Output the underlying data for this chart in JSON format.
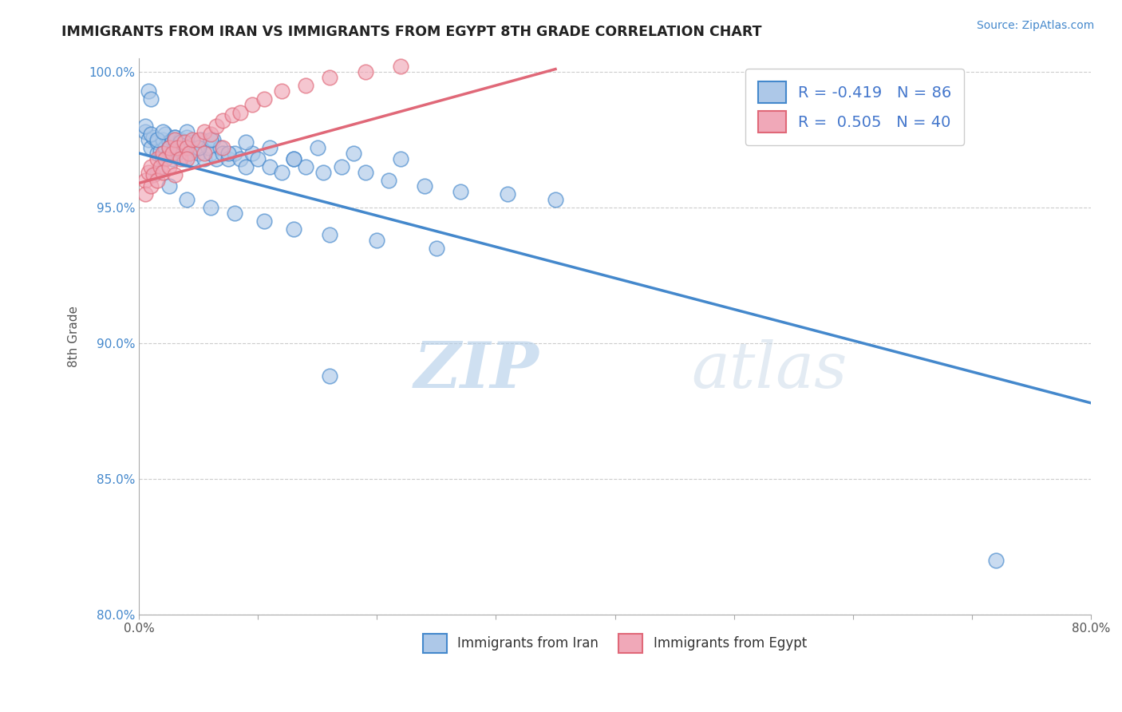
{
  "title": "IMMIGRANTS FROM IRAN VS IMMIGRANTS FROM EGYPT 8TH GRADE CORRELATION CHART",
  "source_text": "Source: ZipAtlas.com",
  "ylabel": "8th Grade",
  "xlim": [
    0.0,
    0.8
  ],
  "ylim": [
    0.8,
    1.005
  ],
  "ytick_labels": [
    "80.0%",
    "85.0%",
    "90.0%",
    "95.0%",
    "100.0%"
  ],
  "ytick_vals": [
    0.8,
    0.85,
    0.9,
    0.95,
    1.0
  ],
  "xtick_vals": [
    0.0,
    0.1,
    0.2,
    0.3,
    0.4,
    0.5,
    0.6,
    0.7,
    0.8
  ],
  "iran_R": -0.419,
  "iran_N": 86,
  "egypt_R": 0.505,
  "egypt_N": 40,
  "iran_color": "#adc8e8",
  "egypt_color": "#f0a8b8",
  "iran_line_color": "#4488cc",
  "egypt_line_color": "#e06878",
  "watermark_zip": "ZIP",
  "watermark_atlas": "atlas",
  "background_color": "#ffffff",
  "iran_line_x": [
    0.0,
    0.8
  ],
  "iran_line_y": [
    0.97,
    0.878
  ],
  "egypt_line_x": [
    0.0,
    0.35
  ],
  "egypt_line_y": [
    0.959,
    1.001
  ],
  "iran_scatter_x": [
    0.005,
    0.008,
    0.01,
    0.012,
    0.015,
    0.015,
    0.018,
    0.02,
    0.02,
    0.022,
    0.022,
    0.025,
    0.025,
    0.028,
    0.028,
    0.03,
    0.03,
    0.032,
    0.035,
    0.035,
    0.038,
    0.038,
    0.04,
    0.04,
    0.042,
    0.045,
    0.045,
    0.048,
    0.05,
    0.052,
    0.055,
    0.058,
    0.06,
    0.062,
    0.065,
    0.068,
    0.07,
    0.075,
    0.08,
    0.085,
    0.09,
    0.095,
    0.1,
    0.11,
    0.12,
    0.13,
    0.14,
    0.155,
    0.17,
    0.19,
    0.21,
    0.24,
    0.27,
    0.31,
    0.35,
    0.005,
    0.01,
    0.015,
    0.02,
    0.025,
    0.03,
    0.035,
    0.04,
    0.05,
    0.06,
    0.075,
    0.09,
    0.11,
    0.13,
    0.15,
    0.18,
    0.22,
    0.015,
    0.025,
    0.04,
    0.06,
    0.08,
    0.105,
    0.13,
    0.16,
    0.2,
    0.25,
    0.008,
    0.01,
    0.72,
    0.16
  ],
  "iran_scatter_y": [
    0.978,
    0.975,
    0.972,
    0.976,
    0.97,
    0.974,
    0.971,
    0.975,
    0.968,
    0.972,
    0.977,
    0.974,
    0.97,
    0.975,
    0.968,
    0.972,
    0.976,
    0.97,
    0.971,
    0.975,
    0.968,
    0.974,
    0.972,
    0.976,
    0.97,
    0.968,
    0.974,
    0.972,
    0.97,
    0.975,
    0.968,
    0.972,
    0.97,
    0.975,
    0.968,
    0.972,
    0.97,
    0.968,
    0.97,
    0.968,
    0.965,
    0.97,
    0.968,
    0.965,
    0.963,
    0.968,
    0.965,
    0.963,
    0.965,
    0.963,
    0.96,
    0.958,
    0.956,
    0.955,
    0.953,
    0.98,
    0.977,
    0.975,
    0.978,
    0.972,
    0.976,
    0.974,
    0.978,
    0.972,
    0.975,
    0.97,
    0.974,
    0.972,
    0.968,
    0.972,
    0.97,
    0.968,
    0.963,
    0.958,
    0.953,
    0.95,
    0.948,
    0.945,
    0.942,
    0.94,
    0.938,
    0.935,
    0.993,
    0.99,
    0.82,
    0.888
  ],
  "egypt_scatter_x": [
    0.005,
    0.008,
    0.01,
    0.012,
    0.015,
    0.018,
    0.02,
    0.022,
    0.025,
    0.028,
    0.03,
    0.032,
    0.035,
    0.038,
    0.04,
    0.042,
    0.045,
    0.05,
    0.055,
    0.06,
    0.065,
    0.07,
    0.078,
    0.085,
    0.095,
    0.105,
    0.12,
    0.14,
    0.16,
    0.19,
    0.22,
    0.005,
    0.01,
    0.015,
    0.02,
    0.025,
    0.03,
    0.04,
    0.055,
    0.07
  ],
  "egypt_scatter_y": [
    0.96,
    0.963,
    0.965,
    0.962,
    0.968,
    0.965,
    0.97,
    0.968,
    0.972,
    0.97,
    0.975,
    0.972,
    0.968,
    0.974,
    0.972,
    0.97,
    0.975,
    0.975,
    0.978,
    0.977,
    0.98,
    0.982,
    0.984,
    0.985,
    0.988,
    0.99,
    0.993,
    0.995,
    0.998,
    1.0,
    1.002,
    0.955,
    0.958,
    0.96,
    0.963,
    0.965,
    0.962,
    0.968,
    0.97,
    0.972
  ]
}
